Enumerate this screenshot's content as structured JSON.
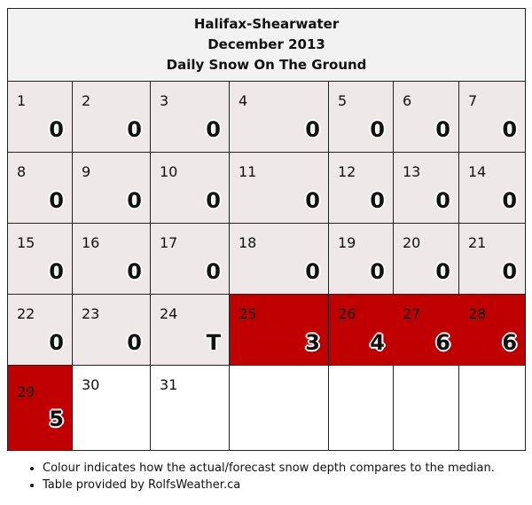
{
  "title": {
    "station": "Halifax-Shearwater",
    "month": "December 2013",
    "metric": "Daily Snow On The Ground"
  },
  "colors": {
    "median_or_below": "#efe8e9",
    "above_median": "#c00000",
    "no_data": "#ffffff"
  },
  "days": [
    {
      "day": "1",
      "value": "0"
    },
    {
      "day": "2",
      "value": "0"
    },
    {
      "day": "3",
      "value": "0"
    },
    {
      "day": "4",
      "value": "0"
    },
    {
      "day": "5",
      "value": "0"
    },
    {
      "day": "6",
      "value": "0"
    },
    {
      "day": "7",
      "value": "0"
    },
    {
      "day": "8",
      "value": "0"
    },
    {
      "day": "9",
      "value": "0"
    },
    {
      "day": "10",
      "value": "0"
    },
    {
      "day": "11",
      "value": "0"
    },
    {
      "day": "12",
      "value": "0"
    },
    {
      "day": "13",
      "value": "0"
    },
    {
      "day": "14",
      "value": "0"
    },
    {
      "day": "15",
      "value": "0"
    },
    {
      "day": "16",
      "value": "0"
    },
    {
      "day": "17",
      "value": "0"
    },
    {
      "day": "18",
      "value": "0"
    },
    {
      "day": "19",
      "value": "0"
    },
    {
      "day": "20",
      "value": "0"
    },
    {
      "day": "21",
      "value": "0"
    },
    {
      "day": "22",
      "value": "0"
    },
    {
      "day": "23",
      "value": "0"
    },
    {
      "day": "24",
      "value": "T"
    },
    {
      "day": "25",
      "value": "3"
    },
    {
      "day": "26",
      "value": "4"
    },
    {
      "day": "27",
      "value": "6"
    },
    {
      "day": "28",
      "value": "6"
    },
    {
      "day": "29",
      "value": "5"
    },
    {
      "day": "30",
      "value": ""
    },
    {
      "day": "31",
      "value": ""
    }
  ],
  "notes": [
    "Colour indicates how the actual/forecast snow depth compares to the median.",
    "Table provided by RolfsWeather.ca"
  ]
}
